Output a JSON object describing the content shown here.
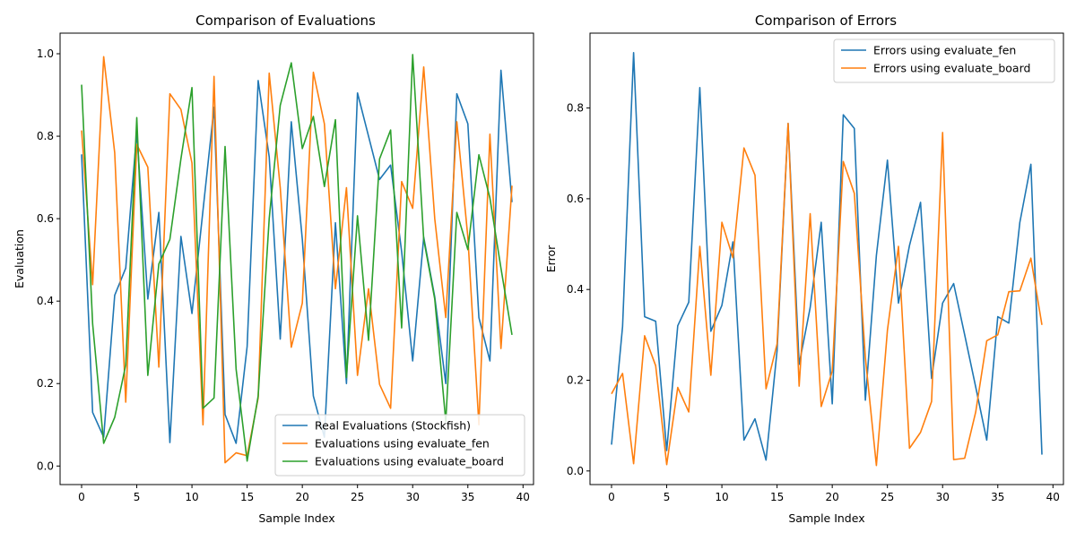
{
  "chart_data": [
    {
      "type": "line",
      "title": "Comparison of Evaluations",
      "xlabel": "Sample Index",
      "ylabel": "Evaluation",
      "xlim": [
        -1.95,
        40.95
      ],
      "ylim": [
        -0.045,
        1.05
      ],
      "xticks": [
        0,
        5,
        10,
        15,
        20,
        25,
        30,
        35,
        40
      ],
      "yticks": [
        0.0,
        0.2,
        0.4,
        0.6,
        0.8,
        1.0
      ],
      "legend_position": "lower-right",
      "x": [
        0,
        1,
        2,
        3,
        4,
        5,
        6,
        7,
        8,
        9,
        10,
        11,
        12,
        13,
        14,
        15,
        16,
        17,
        18,
        19,
        20,
        21,
        22,
        23,
        24,
        25,
        26,
        27,
        28,
        29,
        30,
        31,
        32,
        33,
        34,
        35,
        36,
        37,
        38,
        39
      ],
      "series": [
        {
          "name": "Real Evaluations (Stockfish)",
          "color": "#1f77b4",
          "values": [
            0.756,
            0.13,
            0.07,
            0.414,
            0.48,
            0.81,
            0.405,
            0.615,
            0.057,
            0.557,
            0.37,
            0.62,
            0.87,
            0.125,
            0.055,
            0.29,
            0.935,
            0.75,
            0.308,
            0.835,
            0.55,
            0.17,
            0.07,
            0.59,
            0.2,
            0.905,
            0.8,
            0.695,
            0.73,
            0.52,
            0.255,
            0.555,
            0.41,
            0.2,
            0.903,
            0.83,
            0.36,
            0.255,
            0.96,
            0.64
          ]
        },
        {
          "name": "Evaluations using evaluate_fen",
          "color": "#ff7f0e",
          "values": [
            0.814,
            0.44,
            0.993,
            0.76,
            0.155,
            0.78,
            0.725,
            0.24,
            0.903,
            0.865,
            0.735,
            0.1,
            0.945,
            0.008,
            0.032,
            0.025,
            0.165,
            0.953,
            0.675,
            0.288,
            0.395,
            0.955,
            0.83,
            0.43,
            0.675,
            0.22,
            0.43,
            0.198,
            0.14,
            0.69,
            0.625,
            0.968,
            0.6,
            0.36,
            0.835,
            0.555,
            0.1,
            0.805,
            0.285,
            0.68
          ]
        },
        {
          "name": "Evaluations using evaluate_board",
          "color": "#2ca02c",
          "values": [
            0.925,
            0.345,
            0.055,
            0.118,
            0.245,
            0.845,
            0.22,
            0.49,
            0.55,
            0.745,
            0.918,
            0.14,
            0.165,
            0.775,
            0.235,
            0.012,
            0.17,
            0.6,
            0.875,
            0.978,
            0.77,
            0.848,
            0.678,
            0.84,
            0.215,
            0.607,
            0.305,
            0.745,
            0.815,
            0.335,
            0.998,
            0.55,
            0.405,
            0.108,
            0.615,
            0.525,
            0.755,
            0.65,
            0.48,
            0.318
          ]
        }
      ]
    },
    {
      "type": "line",
      "title": "Comparison of Errors",
      "xlabel": "Sample Index",
      "ylabel": "Error",
      "xlim": [
        -1.95,
        40.95
      ],
      "ylim": [
        -0.03,
        0.965
      ],
      "xticks": [
        0,
        5,
        10,
        15,
        20,
        25,
        30,
        35,
        40
      ],
      "yticks": [
        0.0,
        0.2,
        0.4,
        0.6,
        0.8
      ],
      "legend_position": "upper-right",
      "x": [
        0,
        1,
        2,
        3,
        4,
        5,
        6,
        7,
        8,
        9,
        10,
        11,
        12,
        13,
        14,
        15,
        16,
        17,
        18,
        19,
        20,
        21,
        22,
        23,
        24,
        25,
        26,
        27,
        28,
        29,
        30,
        31,
        32,
        33,
        34,
        35,
        36,
        37,
        38,
        39
      ],
      "series": [
        {
          "name": "Errors using evaluate_fen",
          "color": "#1f77b4",
          "values": [
            0.058,
            0.318,
            0.922,
            0.34,
            0.33,
            0.045,
            0.32,
            0.372,
            0.845,
            0.308,
            0.365,
            0.505,
            0.068,
            0.115,
            0.024,
            0.265,
            0.766,
            0.235,
            0.36,
            0.548,
            0.148,
            0.785,
            0.755,
            0.156,
            0.475,
            0.685,
            0.37,
            0.497,
            0.592,
            0.204,
            0.37,
            0.413,
            0.3,
            0.185,
            0.068,
            0.34,
            0.326,
            0.548,
            0.676,
            0.036
          ]
        },
        {
          "name": "Errors using evaluate_board",
          "color": "#ff7f0e",
          "values": [
            0.17,
            0.215,
            0.016,
            0.298,
            0.232,
            0.014,
            0.184,
            0.13,
            0.495,
            0.211,
            0.548,
            0.47,
            0.712,
            0.652,
            0.181,
            0.28,
            0.766,
            0.187,
            0.567,
            0.142,
            0.22,
            0.682,
            0.612,
            0.25,
            0.012,
            0.31,
            0.495,
            0.05,
            0.085,
            0.153,
            0.746,
            0.025,
            0.028,
            0.13,
            0.287,
            0.3,
            0.395,
            0.397,
            0.469,
            0.322
          ]
        }
      ]
    }
  ]
}
